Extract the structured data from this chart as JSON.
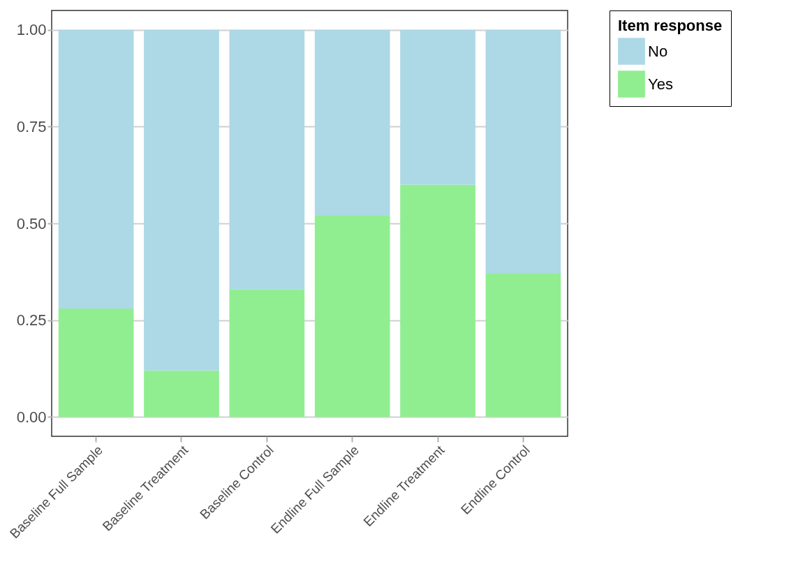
{
  "chart_data": {
    "type": "bar",
    "stacked": true,
    "legend_title": "Item response",
    "legend": "right",
    "grid": "y",
    "categories": [
      "Baseline Full Sample",
      "Baseline Treatment",
      "Baseline Control",
      "Endline Full Sample",
      "Endline Treatment",
      "Endline Control"
    ],
    "series": [
      {
        "name": "Yes",
        "color": "#90ee90",
        "values": [
          0.28,
          0.12,
          0.33,
          0.52,
          0.6,
          0.37
        ]
      },
      {
        "name": "No",
        "color": "#add8e6",
        "values": [
          0.72,
          0.88,
          0.67,
          0.48,
          0.4,
          0.63
        ]
      }
    ],
    "ylim": [
      -0.05,
      1.05
    ],
    "yticks": [
      {
        "value": 0,
        "label": "0.00"
      },
      {
        "value": 0.25,
        "label": "0.25"
      },
      {
        "value": 0.5,
        "label": "0.50"
      },
      {
        "value": 0.75,
        "label": "0.75"
      },
      {
        "value": 1,
        "label": "1.00"
      }
    ]
  }
}
